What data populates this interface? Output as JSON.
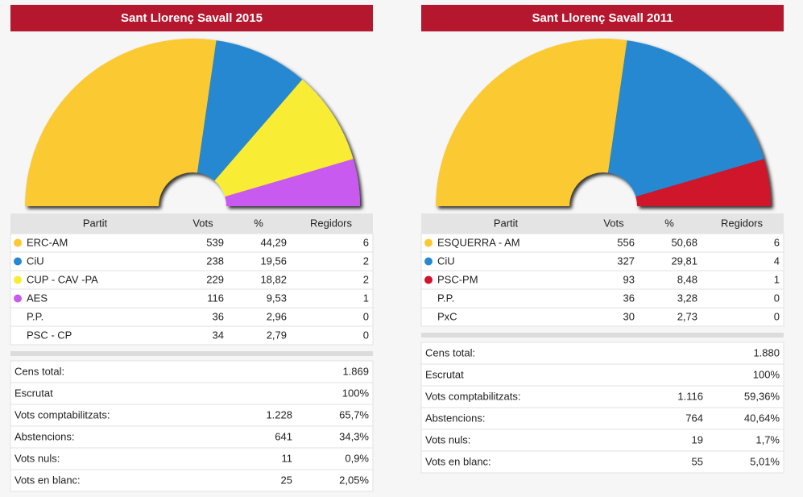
{
  "panels": [
    {
      "title": "Sant Llorenç Savall 2015",
      "columns": [
        "Partit",
        "Vots",
        "%",
        "Regidors"
      ],
      "rows": [
        {
          "party": "ERC-AM",
          "color": "#fbc931",
          "votes": 539,
          "pct": "44,29",
          "seats": 6
        },
        {
          "party": "CiU",
          "color": "#2588d0",
          "votes": 238,
          "pct": "19,56",
          "seats": 2
        },
        {
          "party": "CUP - CAV -PA",
          "color": "#f8ec34",
          "votes": 229,
          "pct": "18,82",
          "seats": 2
        },
        {
          "party": "AES",
          "color": "#c95af0",
          "votes": 116,
          "pct": "9,53",
          "seats": 1
        },
        {
          "party": "P.P.",
          "votes": 36,
          "pct": "2,96",
          "seats": 0
        },
        {
          "party": "PSC - CP",
          "votes": 34,
          "pct": "2,79",
          "seats": 0
        }
      ],
      "summary": [
        {
          "label": "Cens total:",
          "value": "1.869"
        },
        {
          "label": "Escrutat",
          "value": "100%"
        },
        {
          "label": "Vots comptabilitzats:",
          "count": "1.228",
          "value": "65,7%"
        },
        {
          "label": "Abstencions:",
          "count": "641",
          "value": "34,3%"
        },
        {
          "label": "Vots nuls:",
          "count": "11",
          "value": "0,9%"
        },
        {
          "label": "Vots en blanc:",
          "count": "25",
          "value": "2,05%"
        }
      ]
    },
    {
      "title": "Sant Llorenç Savall 2011",
      "columns": [
        "Partit",
        "Vots",
        "%",
        "Regidors"
      ],
      "rows": [
        {
          "party": "ESQUERRA - AM",
          "color": "#fbc931",
          "votes": 556,
          "pct": "50,68",
          "seats": 6
        },
        {
          "party": "CiU",
          "color": "#2588d0",
          "votes": 327,
          "pct": "29,81",
          "seats": 4
        },
        {
          "party": "PSC-PM",
          "color": "#d0122b",
          "votes": 93,
          "pct": "8,48",
          "seats": 1
        },
        {
          "party": "P.P.",
          "votes": 36,
          "pct": "3,28",
          "seats": 0
        },
        {
          "party": "PxC",
          "votes": 30,
          "pct": "2,73",
          "seats": 0
        }
      ],
      "summary": [
        {
          "label": "Cens total:",
          "value": "1.880"
        },
        {
          "label": "Escrutat",
          "value": "100%"
        },
        {
          "label": "Vots comptabilitzats:",
          "count": "1.116",
          "value": "59,36%"
        },
        {
          "label": "Abstencions:",
          "count": "764",
          "value": "40,64%"
        },
        {
          "label": "Vots nuls:",
          "count": "19",
          "value": "1,7%"
        },
        {
          "label": "Vots en blanc:",
          "count": "55",
          "value": "5,01%"
        }
      ]
    }
  ]
}
